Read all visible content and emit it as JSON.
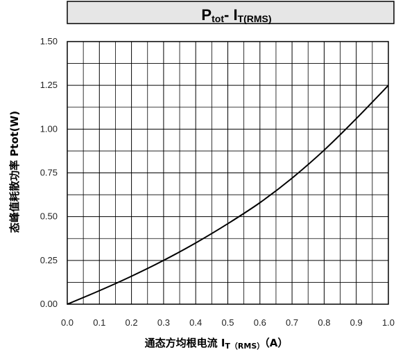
{
  "chart_data": {
    "type": "line",
    "title_main": "P",
    "title_main_sub": "tot",
    "title_sep": "- I",
    "title_sep_sub": "T(RMS)",
    "xlabel_main": "通态方均根电流 I",
    "xlabel_sub": "T（RMS）",
    "xlabel_unit": "（A）",
    "ylabel": "态峰值耗散功率 Ptot(W)",
    "xlim": [
      0.0,
      1.0
    ],
    "ylim": [
      0.0,
      1.5
    ],
    "xticks": [
      "0.0",
      "0.1",
      "0.2",
      "0.3",
      "0.4",
      "0.5",
      "0.6",
      "0.7",
      "0.8",
      "0.9",
      "1.0"
    ],
    "yticks": [
      "0.00",
      "0.25",
      "0.50",
      "0.75",
      "1.00",
      "1.25",
      "1.50"
    ],
    "grid": true,
    "series": [
      {
        "x": [
          0.0,
          0.1,
          0.2,
          0.3,
          0.4,
          0.5,
          0.6,
          0.7,
          0.8,
          0.9,
          1.0
        ],
        "y": [
          0.0,
          0.077,
          0.16,
          0.25,
          0.35,
          0.46,
          0.58,
          0.72,
          0.88,
          1.06,
          1.25
        ]
      }
    ],
    "colors": {
      "line": "#000000",
      "grid": "#000000",
      "title_bg": "#e6e6e6"
    }
  }
}
